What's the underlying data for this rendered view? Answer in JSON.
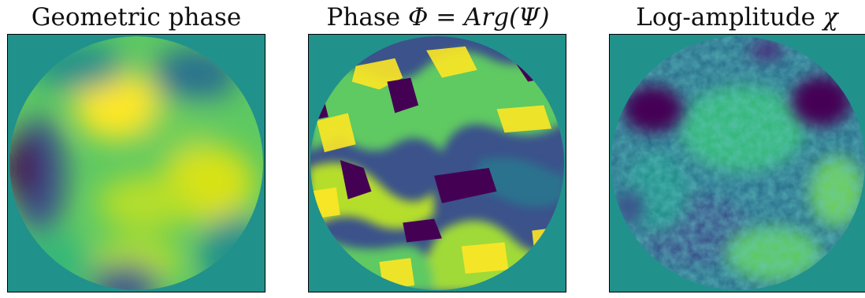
{
  "panels": [
    {
      "title_text": "Geometric phase",
      "title_math": "",
      "image": "circular aperture map, viridis colormap, smooth large-scale structure"
    },
    {
      "title_text": "Phase ",
      "title_math": "Φ = Arg(Ψ)",
      "image": "circular aperture map, viridis colormap, wrapped phase with sharp discontinuities"
    },
    {
      "title_text": "Log-amplitude ",
      "title_math": "χ",
      "image": "circular aperture map, viridis colormap, fine-grained speckle"
    }
  ],
  "colors": {
    "background_fill": "#21918c",
    "colormap": [
      "#440154",
      "#3b528b",
      "#21918c",
      "#5ec962",
      "#fde725"
    ],
    "frame": "#000000"
  }
}
